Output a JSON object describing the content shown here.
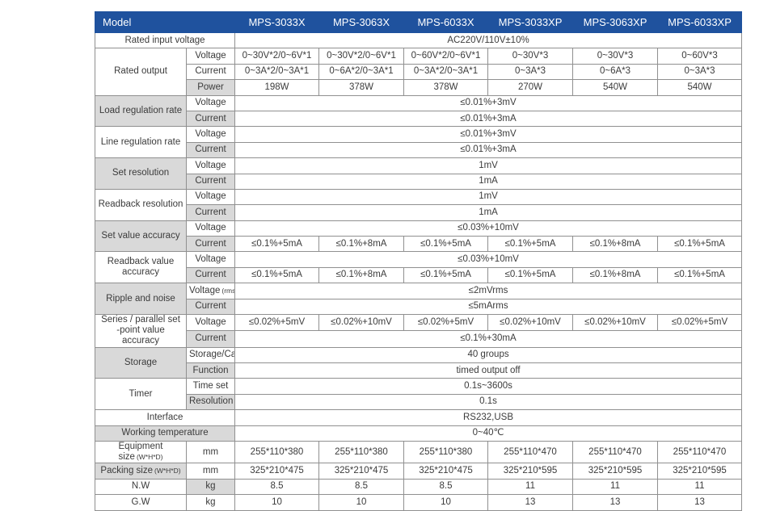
{
  "colors": {
    "header_bg": "#1F529E",
    "header_divider": "#4A74B8",
    "shaded_cell": "#D9D9D9",
    "grid_line": "#909090",
    "text": "#3b3b3b"
  },
  "table": {
    "header": {
      "model_label": "Model",
      "columns": [
        "MPS-3033X",
        "MPS-3063X",
        "MPS-6033X",
        "MPS-3033XP",
        "MPS-3063XP",
        "MPS-6033XP"
      ]
    },
    "rows": [
      {
        "cells": [
          {
            "kind": "row-label",
            "text": "Rated input voltage",
            "colspan": 2
          },
          {
            "kind": "value-cell",
            "text": "AC220V/110V±10%",
            "colspan": 6
          }
        ]
      },
      {
        "cells": [
          {
            "kind": "row-group-label",
            "text": "Rated output",
            "rowspan": 3
          },
          {
            "kind": "row-sub-label",
            "text": "Voltage"
          },
          {
            "kind": "value-cell",
            "text": "0~30V*2/0~6V*1"
          },
          {
            "kind": "value-cell",
            "text": "0~30V*2/0~6V*1"
          },
          {
            "kind": "value-cell",
            "text": "0~60V*2/0~6V*1"
          },
          {
            "kind": "value-cell",
            "text": "0~30V*3"
          },
          {
            "kind": "value-cell",
            "text": "0~30V*3"
          },
          {
            "kind": "value-cell",
            "text": "0~60V*3"
          }
        ]
      },
      {
        "cells": [
          {
            "kind": "row-sub-label",
            "text": "Current"
          },
          {
            "kind": "value-cell",
            "text": "0~3A*2/0~3A*1"
          },
          {
            "kind": "value-cell",
            "text": "0~6A*2/0~3A*1"
          },
          {
            "kind": "value-cell",
            "text": "0~3A*2/0~3A*1"
          },
          {
            "kind": "value-cell",
            "text": "0~3A*3"
          },
          {
            "kind": "value-cell",
            "text": "0~6A*3"
          },
          {
            "kind": "value-cell",
            "text": "0~3A*3"
          }
        ]
      },
      {
        "cells": [
          {
            "kind": "row-sub-label",
            "text": "Power",
            "gray": true
          },
          {
            "kind": "value-cell",
            "text": "198W"
          },
          {
            "kind": "value-cell",
            "text": "378W"
          },
          {
            "kind": "value-cell",
            "text": "378W"
          },
          {
            "kind": "value-cell",
            "text": "270W"
          },
          {
            "kind": "value-cell",
            "text": "540W"
          },
          {
            "kind": "value-cell",
            "text": "540W"
          }
        ]
      },
      {
        "cells": [
          {
            "kind": "row-group-label",
            "text": "Load regulation rate",
            "rowspan": 2,
            "gray": true
          },
          {
            "kind": "row-sub-label",
            "text": "Voltage"
          },
          {
            "kind": "value-cell",
            "text": "≤0.01%+3mV",
            "colspan": 6
          }
        ]
      },
      {
        "cells": [
          {
            "kind": "row-sub-label",
            "text": "Current",
            "gray": true
          },
          {
            "kind": "value-cell",
            "text": "≤0.01%+3mA",
            "colspan": 6
          }
        ]
      },
      {
        "cells": [
          {
            "kind": "row-group-label",
            "text": "Line regulation rate",
            "rowspan": 2
          },
          {
            "kind": "row-sub-label",
            "text": "Voltage"
          },
          {
            "kind": "value-cell",
            "text": "≤0.01%+3mV",
            "colspan": 6
          }
        ]
      },
      {
        "cells": [
          {
            "kind": "row-sub-label",
            "text": "Current",
            "gray": true
          },
          {
            "kind": "value-cell",
            "text": "≤0.01%+3mA",
            "colspan": 6
          }
        ]
      },
      {
        "cells": [
          {
            "kind": "row-group-label",
            "text": "Set resolution",
            "rowspan": 2,
            "gray": true
          },
          {
            "kind": "row-sub-label",
            "text": "Voltage"
          },
          {
            "kind": "value-cell",
            "text": "1mV",
            "colspan": 6
          }
        ]
      },
      {
        "cells": [
          {
            "kind": "row-sub-label",
            "text": "Current",
            "gray": true
          },
          {
            "kind": "value-cell",
            "text": "1mA",
            "colspan": 6
          }
        ]
      },
      {
        "cells": [
          {
            "kind": "row-group-label",
            "text": "Readback resolution",
            "rowspan": 2
          },
          {
            "kind": "row-sub-label",
            "text": "Voltage"
          },
          {
            "kind": "value-cell",
            "text": "1mV",
            "colspan": 6
          }
        ]
      },
      {
        "cells": [
          {
            "kind": "row-sub-label",
            "text": "Current",
            "gray": true
          },
          {
            "kind": "value-cell",
            "text": "1mA",
            "colspan": 6
          }
        ]
      },
      {
        "cells": [
          {
            "kind": "row-group-label",
            "text": "Set value accuracy",
            "rowspan": 2,
            "gray": true
          },
          {
            "kind": "row-sub-label",
            "text": "Voltage"
          },
          {
            "kind": "value-cell",
            "text": "≤0.03%+10mV",
            "colspan": 6
          }
        ]
      },
      {
        "cells": [
          {
            "kind": "row-sub-label",
            "text": "Current",
            "gray": true
          },
          {
            "kind": "value-cell",
            "text": "≤0.1%+5mA"
          },
          {
            "kind": "value-cell",
            "text": "≤0.1%+8mA"
          },
          {
            "kind": "value-cell",
            "text": "≤0.1%+5mA"
          },
          {
            "kind": "value-cell",
            "text": "≤0.1%+5mA"
          },
          {
            "kind": "value-cell",
            "text": "≤0.1%+8mA"
          },
          {
            "kind": "value-cell",
            "text": "≤0.1%+5mA"
          }
        ]
      },
      {
        "cells": [
          {
            "kind": "row-group-label",
            "text": "Readback value accuracy",
            "rowspan": 2
          },
          {
            "kind": "row-sub-label",
            "text": "Voltage"
          },
          {
            "kind": "value-cell",
            "text": "≤0.03%+10mV",
            "colspan": 6
          }
        ]
      },
      {
        "cells": [
          {
            "kind": "row-sub-label",
            "text": "Current",
            "gray": true
          },
          {
            "kind": "value-cell",
            "text": "≤0.1%+5mA"
          },
          {
            "kind": "value-cell",
            "text": "≤0.1%+8mA"
          },
          {
            "kind": "value-cell",
            "text": "≤0.1%+5mA"
          },
          {
            "kind": "value-cell",
            "text": "≤0.1%+5mA"
          },
          {
            "kind": "value-cell",
            "text": "≤0.1%+8mA"
          },
          {
            "kind": "value-cell",
            "text": "≤0.1%+5mA"
          }
        ]
      },
      {
        "cells": [
          {
            "kind": "row-group-label",
            "text": "Ripple and noise",
            "rowspan": 2,
            "gray": true
          },
          {
            "kind": "row-sub-label",
            "text": "Voltage",
            "small": "(rms)"
          },
          {
            "kind": "value-cell",
            "text": "≤2mVrms",
            "colspan": 6
          }
        ]
      },
      {
        "cells": [
          {
            "kind": "row-sub-label",
            "text": "Current",
            "gray": true
          },
          {
            "kind": "value-cell",
            "text": "≤5mArms",
            "colspan": 6
          }
        ]
      },
      {
        "cells": [
          {
            "kind": "row-group-label",
            "text": "Series / parallel set\n-point value accuracy",
            "rowspan": 2
          },
          {
            "kind": "row-sub-label",
            "text": "Voltage"
          },
          {
            "kind": "value-cell",
            "text": "≤0.02%+5mV"
          },
          {
            "kind": "value-cell",
            "text": "≤0.02%+10mV"
          },
          {
            "kind": "value-cell",
            "text": "≤0.02%+5mV"
          },
          {
            "kind": "value-cell",
            "text": "≤0.02%+10mV"
          },
          {
            "kind": "value-cell",
            "text": "≤0.02%+10mV"
          },
          {
            "kind": "value-cell",
            "text": "≤0.02%+5mV"
          }
        ]
      },
      {
        "cells": [
          {
            "kind": "row-sub-label",
            "text": "Current",
            "gray": true
          },
          {
            "kind": "value-cell",
            "text": "≤0.1%+30mA",
            "colspan": 6
          }
        ]
      },
      {
        "cells": [
          {
            "kind": "row-group-label",
            "text": "Storage",
            "rowspan": 2,
            "gray": true
          },
          {
            "kind": "row-sub-label",
            "text": "Storage/Call"
          },
          {
            "kind": "value-cell",
            "text": "40 groups",
            "colspan": 6
          }
        ]
      },
      {
        "cells": [
          {
            "kind": "row-sub-label",
            "text": "Function",
            "gray": true
          },
          {
            "kind": "value-cell",
            "text": "timed output off",
            "colspan": 6
          }
        ]
      },
      {
        "cells": [
          {
            "kind": "row-group-label",
            "text": "Timer",
            "rowspan": 2
          },
          {
            "kind": "row-sub-label",
            "text": "Time set"
          },
          {
            "kind": "value-cell",
            "text": "0.1s~3600s",
            "colspan": 6
          }
        ]
      },
      {
        "cells": [
          {
            "kind": "row-sub-label",
            "text": "Resolution",
            "gray": true
          },
          {
            "kind": "value-cell",
            "text": "0.1s",
            "colspan": 6
          }
        ]
      },
      {
        "cells": [
          {
            "kind": "row-label",
            "text": "Interface",
            "colspan": 2
          },
          {
            "kind": "value-cell",
            "text": "RS232,USB",
            "colspan": 6
          }
        ]
      },
      {
        "cells": [
          {
            "kind": "row-label",
            "text": "Working temperature",
            "colspan": 2,
            "gray": true
          },
          {
            "kind": "value-cell",
            "text": "0~40℃",
            "colspan": 6
          }
        ]
      },
      {
        "cells": [
          {
            "kind": "row-label",
            "text": "Equipment size",
            "small": "(W*H*D)"
          },
          {
            "kind": "unit-cell",
            "text": "mm"
          },
          {
            "kind": "value-cell",
            "text": "255*110*380"
          },
          {
            "kind": "value-cell",
            "text": "255*110*380"
          },
          {
            "kind": "value-cell",
            "text": "255*110*380"
          },
          {
            "kind": "value-cell",
            "text": "255*110*470"
          },
          {
            "kind": "value-cell",
            "text": "255*110*470"
          },
          {
            "kind": "value-cell",
            "text": "255*110*470"
          }
        ]
      },
      {
        "cells": [
          {
            "kind": "row-label",
            "text": "Packing size",
            "small": "(W*H*D)",
            "gray": true
          },
          {
            "kind": "unit-cell",
            "text": "mm"
          },
          {
            "kind": "value-cell",
            "text": "325*210*475"
          },
          {
            "kind": "value-cell",
            "text": "325*210*475"
          },
          {
            "kind": "value-cell",
            "text": "325*210*475"
          },
          {
            "kind": "value-cell",
            "text": "325*210*595"
          },
          {
            "kind": "value-cell",
            "text": "325*210*595"
          },
          {
            "kind": "value-cell",
            "text": "325*210*595"
          }
        ]
      },
      {
        "cells": [
          {
            "kind": "row-label",
            "text": "N.W"
          },
          {
            "kind": "unit-cell",
            "text": "kg",
            "gray": true
          },
          {
            "kind": "value-cell",
            "text": "8.5"
          },
          {
            "kind": "value-cell",
            "text": "8.5"
          },
          {
            "kind": "value-cell",
            "text": "8.5"
          },
          {
            "kind": "value-cell",
            "text": "11"
          },
          {
            "kind": "value-cell",
            "text": "11"
          },
          {
            "kind": "value-cell",
            "text": "11"
          }
        ]
      },
      {
        "cells": [
          {
            "kind": "row-label",
            "text": "G.W"
          },
          {
            "kind": "unit-cell",
            "text": "kg"
          },
          {
            "kind": "value-cell",
            "text": "10"
          },
          {
            "kind": "value-cell",
            "text": "10"
          },
          {
            "kind": "value-cell",
            "text": "10"
          },
          {
            "kind": "value-cell",
            "text": "13"
          },
          {
            "kind": "value-cell",
            "text": "13"
          },
          {
            "kind": "value-cell",
            "text": "13"
          }
        ]
      }
    ]
  }
}
